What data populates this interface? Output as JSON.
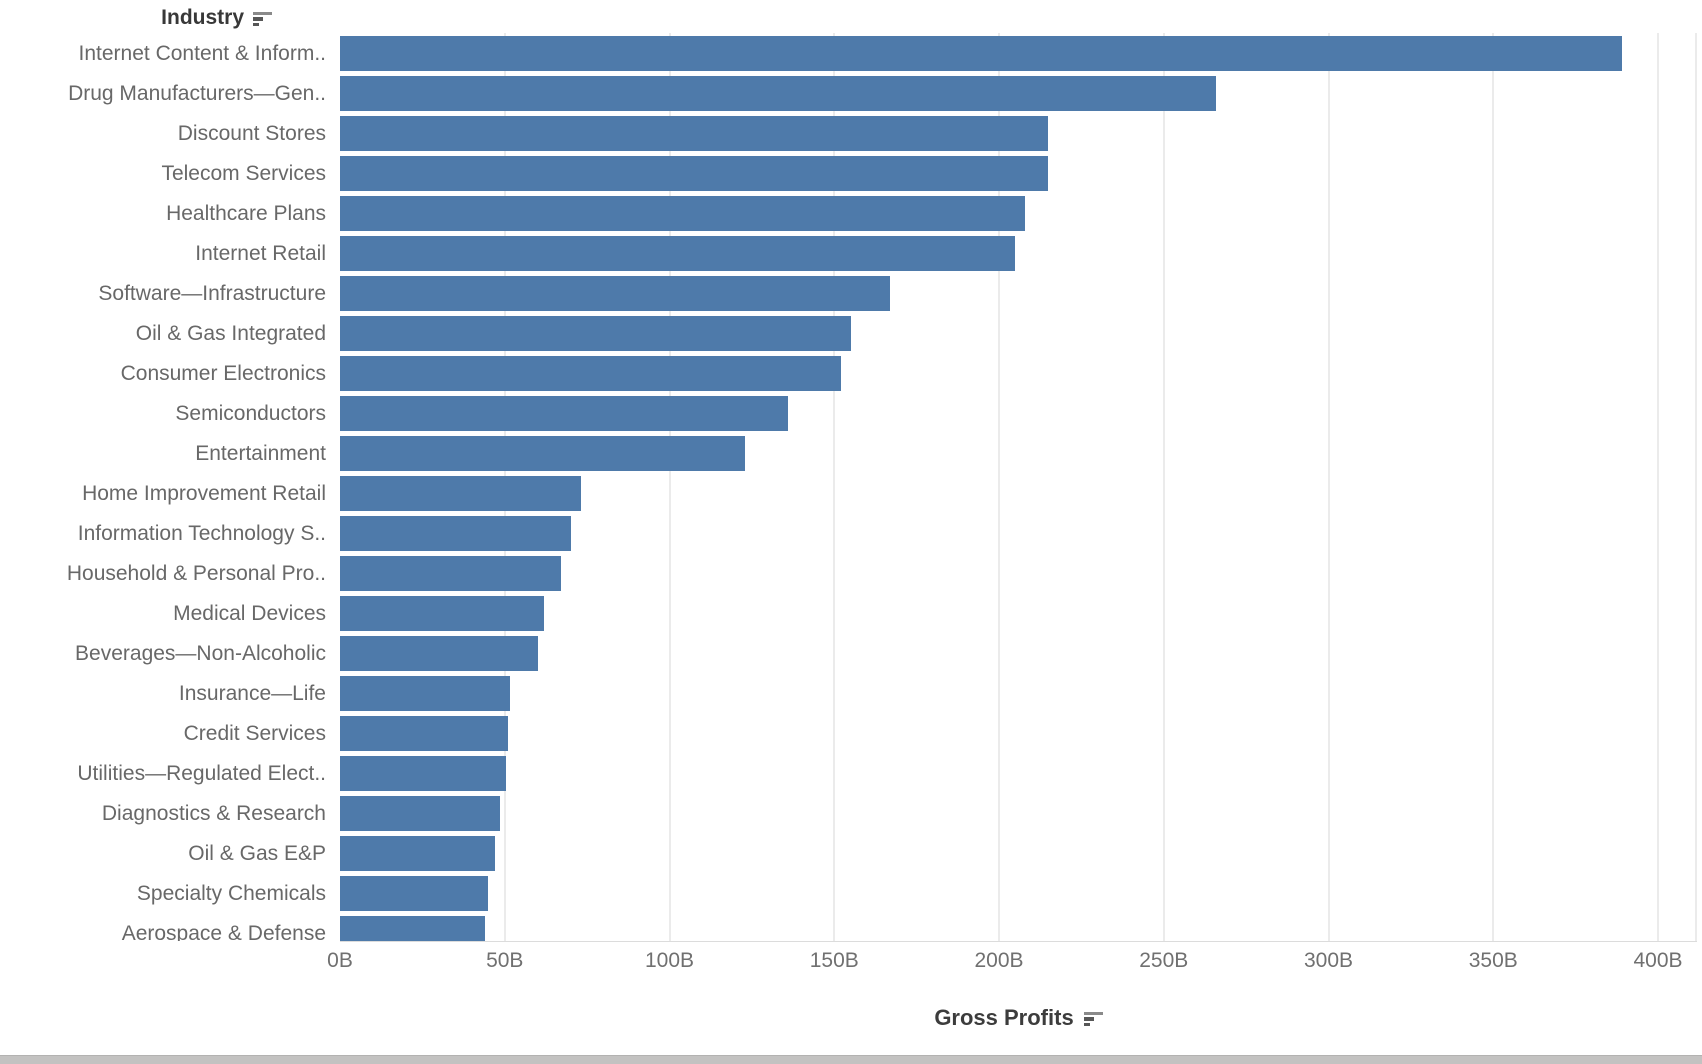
{
  "header": {
    "industry_label": "Industry"
  },
  "x_axis": {
    "title": "Gross Profits"
  },
  "colors": {
    "bar": "#4e7aaa",
    "label_text": "#686868",
    "tick_text": "#707070",
    "header_text": "#383838",
    "gridline": "#ebebeb"
  },
  "chart_data": {
    "type": "bar",
    "orientation": "horizontal",
    "title": "Industry",
    "xlabel": "Gross Profits",
    "ylabel": "Industry",
    "unit": "billions USD",
    "sort": "descending",
    "grid": "vertical",
    "xlim": [
      0,
      400
    ],
    "x_tick_labels": [
      "0B",
      "50B",
      "100B",
      "150B",
      "200B",
      "250B",
      "300B",
      "350B",
      "400B"
    ],
    "x_tick_values": [
      0,
      50,
      100,
      150,
      200,
      250,
      300,
      350,
      400
    ],
    "categories": [
      "Internet Content & Inform..",
      "Drug Manufacturers—Gen..",
      "Discount Stores",
      "Telecom Services",
      "Healthcare Plans",
      "Internet Retail",
      "Software—Infrastructure",
      "Oil & Gas Integrated",
      "Consumer Electronics",
      "Semiconductors",
      "Entertainment",
      "Home Improvement Retail",
      "Information Technology S..",
      "Household & Personal Pro..",
      "Medical Devices",
      "Beverages—Non-Alcoholic",
      "Insurance—Life",
      "Credit Services",
      "Utilities—Regulated Elect..",
      "Diagnostics & Research",
      "Oil & Gas E&P",
      "Specialty Chemicals",
      "Aerospace & Defense"
    ],
    "values": [
      389,
      266,
      215,
      215,
      208,
      205,
      167,
      155,
      152,
      136,
      123,
      73,
      70,
      67,
      62,
      60,
      51.5,
      51,
      50.5,
      48.5,
      47,
      45,
      44
    ]
  }
}
